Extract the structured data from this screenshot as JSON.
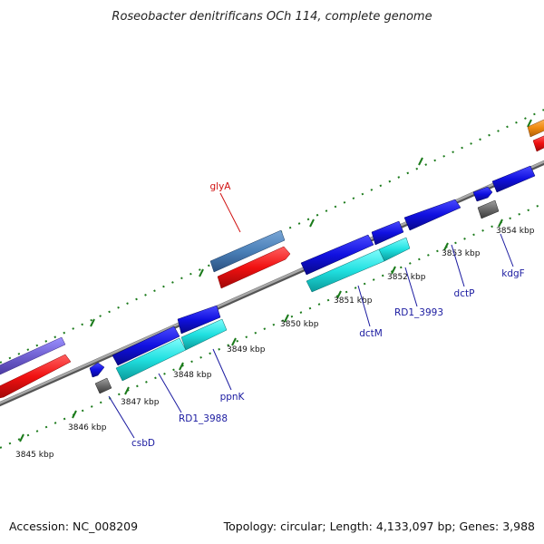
{
  "title": "Roseobacter denitrificans OCh 114, complete genome",
  "footer": {
    "accession": "Accession: NC_008209",
    "topology": "Topology: circular; Length: 4,133,097 bp; Genes: 3,988"
  },
  "ticks": [
    "3845 kbp",
    "3846 kbp",
    "3847 kbp",
    "3848 kbp",
    "3849 kbp",
    "3850 kbp",
    "3851 kbp",
    "3852 kbp",
    "3853 kbp",
    "3854 kbp"
  ],
  "genes": [
    "glyA",
    "csbD",
    "RD1_3988",
    "ppnK",
    "dctM",
    "RD1_3993",
    "dctP",
    "kdgF"
  ],
  "colors": {
    "backbone": "#8a8a8a",
    "blue": "#1010e0",
    "cyan": "#20e8e8",
    "red": "#f01010",
    "steel": "#4a80b8",
    "purple": "#7060d0",
    "orange": "#f08a10",
    "gray": "#6a6a6a",
    "tick": "#1a7a1a",
    "label_blue": "#1a1aa0",
    "label_red": "#d01010"
  }
}
